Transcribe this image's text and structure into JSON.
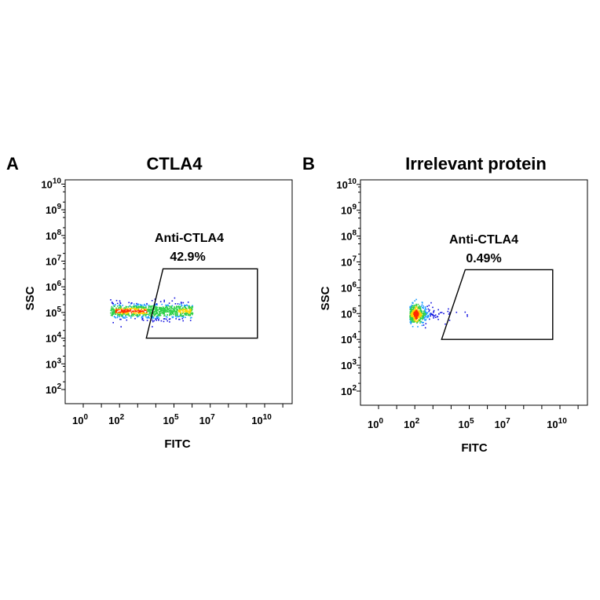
{
  "chart_data": [
    {
      "type": "scatter",
      "panel": "A",
      "title": "CTLA4",
      "xlabel": "FITC",
      "ylabel": "SSC",
      "x_scale": "log",
      "y_scale": "log",
      "xlim": [
        0.1,
        10000000000000.0
      ],
      "ylim": [
        10,
        20000000000.0
      ],
      "x_ticks": [
        {
          "base": "10",
          "exp": "0",
          "value": 1
        },
        {
          "base": "10",
          "exp": "2",
          "value": 100
        },
        {
          "base": "10",
          "exp": "5",
          "value": 100000
        },
        {
          "base": "10",
          "exp": "7",
          "value": 10000000
        },
        {
          "base": "10",
          "exp": "10",
          "value": 10000000000
        }
      ],
      "y_ticks": [
        {
          "base": "10",
          "exp": "2",
          "value": 100
        },
        {
          "base": "10",
          "exp": "3",
          "value": 1000
        },
        {
          "base": "10",
          "exp": "4",
          "value": 10000
        },
        {
          "base": "10",
          "exp": "5",
          "value": 100000
        },
        {
          "base": "10",
          "exp": "6",
          "value": 1000000
        },
        {
          "base": "10",
          "exp": "7",
          "value": 10000000
        },
        {
          "base": "10",
          "exp": "8",
          "value": 100000000
        },
        {
          "base": "10",
          "exp": "9",
          "value": 1000000000
        },
        {
          "base": "10",
          "exp": "10",
          "value": 10000000000
        }
      ],
      "gate": {
        "name": "Anti-CTLA4",
        "percent": "42.9%",
        "vertices": [
          [
            25000,
            5000000
          ],
          [
            4000000000.0,
            5000000
          ],
          [
            4000000000.0,
            10000
          ],
          [
            3000,
            10000
          ]
        ]
      },
      "population": {
        "x_range": [
          30,
          1000000
        ],
        "y_center": 120000,
        "high_density_x": [
          50,
          3000
        ],
        "distribution": "elongated horizontal band spanning the gate boundary"
      }
    },
    {
      "type": "scatter",
      "panel": "B",
      "title": "Irrelevant protein",
      "xlabel": "FITC",
      "ylabel": "SSC",
      "x_scale": "log",
      "y_scale": "log",
      "xlim": [
        0.1,
        10000000000000.0
      ],
      "ylim": [
        10,
        20000000000.0
      ],
      "x_ticks": [
        {
          "base": "10",
          "exp": "0",
          "value": 1
        },
        {
          "base": "10",
          "exp": "2",
          "value": 100
        },
        {
          "base": "10",
          "exp": "5",
          "value": 100000
        },
        {
          "base": "10",
          "exp": "7",
          "value": 10000000
        },
        {
          "base": "10",
          "exp": "10",
          "value": 10000000000
        }
      ],
      "y_ticks": [
        {
          "base": "10",
          "exp": "2",
          "value": 100
        },
        {
          "base": "10",
          "exp": "3",
          "value": 1000
        },
        {
          "base": "10",
          "exp": "4",
          "value": 10000
        },
        {
          "base": "10",
          "exp": "5",
          "value": 100000
        },
        {
          "base": "10",
          "exp": "6",
          "value": 1000000
        },
        {
          "base": "10",
          "exp": "7",
          "value": 10000000
        },
        {
          "base": "10",
          "exp": "8",
          "value": 100000000
        },
        {
          "base": "10",
          "exp": "9",
          "value": 1000000000
        },
        {
          "base": "10",
          "exp": "10",
          "value": 10000000000
        }
      ],
      "gate": {
        "name": "Anti-CTLA4",
        "percent": "0.49%",
        "vertices": [
          [
            60000,
            5000000
          ],
          [
            4000000000.0,
            5000000
          ],
          [
            4000000000.0,
            10000
          ],
          [
            3000,
            10000
          ]
        ]
      },
      "population": {
        "x_range": [
          30,
          80000
        ],
        "y_center": 100000,
        "high_density_x": [
          50,
          600
        ],
        "distribution": "compact cluster left of the gate"
      }
    }
  ],
  "colors": {
    "density_high": "#ff2a00",
    "density_mid_high": "#ffd400",
    "density_mid": "#2fd04a",
    "density_low": "#1a9bff",
    "density_sparse": "#1010e0",
    "gate_line": "#000000",
    "frame": "#000000"
  }
}
